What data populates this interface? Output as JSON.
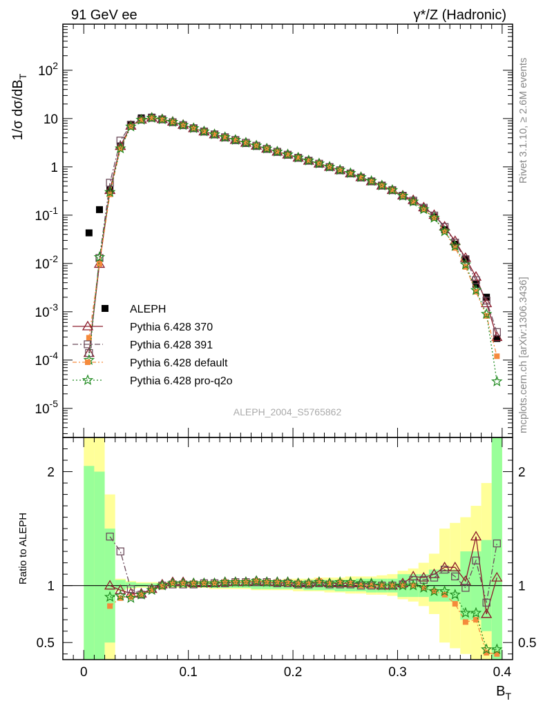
{
  "header": {
    "left": "91 GeV ee",
    "right": "γ*/Z (Hadronic)"
  },
  "side_text": {
    "rivet": "Rivet 3.1.10, ≥ 2.6M events",
    "mcplots": "mcplots.cern.ch [arXiv:1306.3436]"
  },
  "analysis_label": "ALEPH_2004_S5765862",
  "colors": {
    "aleph": "#000000",
    "p370": "#8b1a2a",
    "p391": "#6b4a5a",
    "pdefault": "#f58a3c",
    "pq2o": "#1f8a1f",
    "band_yellow": "#ffff99",
    "band_green": "#99ff99"
  },
  "chart_data": [
    {
      "type": "scatter",
      "panel": "main",
      "ylabel": "1/σ  dσ/dB_T",
      "xlabel": "",
      "yscale": "log",
      "xlim": [
        -0.02,
        0.41
      ],
      "ylim": [
        2.5e-06,
        900
      ],
      "ytick_labels": [
        "10^-5",
        "10^-4",
        "10^-3",
        "10^-2",
        "10^-1",
        "1",
        "10",
        "10^2"
      ],
      "legend_position": "lower-left",
      "legend": [
        {
          "key": "aleph",
          "label": "ALEPH"
        },
        {
          "key": "p370",
          "label": "Pythia 6.428 370"
        },
        {
          "key": "p391",
          "label": "Pythia 6.428 391"
        },
        {
          "key": "pdefault",
          "label": "Pythia 6.428 default"
        },
        {
          "key": "pq2o",
          "label": "Pythia 6.428 pro-q2o"
        }
      ],
      "x": [
        0.005,
        0.015,
        0.025,
        0.035,
        0.045,
        0.055,
        0.065,
        0.075,
        0.085,
        0.095,
        0.105,
        0.115,
        0.125,
        0.135,
        0.145,
        0.155,
        0.165,
        0.175,
        0.185,
        0.195,
        0.205,
        0.215,
        0.225,
        0.235,
        0.245,
        0.255,
        0.265,
        0.275,
        0.285,
        0.295,
        0.305,
        0.315,
        0.325,
        0.335,
        0.345,
        0.355,
        0.365,
        0.375,
        0.385,
        0.395
      ],
      "series": [
        {
          "key": "aleph",
          "name": "ALEPH",
          "values": [
            0.043,
            0.13,
            0.33,
            2.7,
            7.6,
            10.3,
            10.7,
            9.6,
            8.3,
            7.2,
            6.2,
            5.3,
            4.6,
            4.0,
            3.5,
            3.05,
            2.65,
            2.3,
            2.0,
            1.75,
            1.52,
            1.32,
            1.14,
            0.98,
            0.84,
            0.72,
            0.6,
            0.5,
            0.41,
            0.33,
            0.25,
            0.19,
            0.135,
            0.092,
            0.05,
            0.025,
            0.0125,
            0.0037,
            0.002,
            0.00028
          ]
        },
        {
          "key": "p370",
          "name": "Pythia 6.428 370",
          "values": [
            0.00014,
            0.0098,
            0.33,
            2.7,
            7.1,
            9.5,
            10.4,
            9.7,
            8.6,
            7.4,
            6.3,
            5.4,
            4.7,
            4.1,
            3.6,
            3.15,
            2.75,
            2.38,
            2.06,
            1.8,
            1.55,
            1.34,
            1.17,
            1.0,
            0.85,
            0.73,
            0.61,
            0.5,
            0.41,
            0.33,
            0.255,
            0.205,
            0.145,
            0.101,
            0.058,
            0.029,
            0.013,
            0.0053,
            0.0015,
            0.0003
          ]
        },
        {
          "key": "p391",
          "name": "Pythia 6.428 391",
          "values": [
            0.00014,
            0.013,
            0.47,
            3.5,
            7.4,
            9.5,
            10.4,
            9.6,
            8.4,
            7.3,
            6.3,
            5.4,
            4.7,
            4.1,
            3.6,
            3.15,
            2.73,
            2.36,
            2.05,
            1.78,
            1.54,
            1.34,
            1.16,
            0.99,
            0.85,
            0.73,
            0.6,
            0.5,
            0.41,
            0.33,
            0.252,
            0.2,
            0.142,
            0.098,
            0.057,
            0.027,
            0.0122,
            0.0045,
            0.0017,
            0.00038
          ]
        },
        {
          "key": "pdefault",
          "name": "Pythia 6.428 default",
          "values": [
            0.00029,
            0.0098,
            0.27,
            2.4,
            6.8,
            9.3,
            10.3,
            9.5,
            8.5,
            7.3,
            6.3,
            5.4,
            4.7,
            4.1,
            3.6,
            3.15,
            2.75,
            2.38,
            2.06,
            1.78,
            1.54,
            1.34,
            1.18,
            1.0,
            0.86,
            0.73,
            0.6,
            0.5,
            0.41,
            0.33,
            0.25,
            0.19,
            0.132,
            0.087,
            0.046,
            0.021,
            0.0085,
            0.0026,
            0.00082,
            0.00012
          ]
        },
        {
          "key": "pq2o",
          "name": "Pythia 6.428 pro-q2o",
          "values": [
            0.0001,
            0.0135,
            0.3,
            2.4,
            6.8,
            9.4,
            10.3,
            9.6,
            8.5,
            7.3,
            6.3,
            5.4,
            4.7,
            4.1,
            3.6,
            3.15,
            2.75,
            2.38,
            2.06,
            1.8,
            1.55,
            1.35,
            1.17,
            1.0,
            0.86,
            0.74,
            0.61,
            0.51,
            0.41,
            0.33,
            0.25,
            0.19,
            0.132,
            0.088,
            0.046,
            0.023,
            0.0095,
            0.0028,
            0.0009,
            3.6e-05
          ]
        }
      ]
    },
    {
      "type": "scatter",
      "panel": "ratio",
      "ylabel": "Ratio to ALEPH",
      "xlabel": "B_T",
      "ylim": [
        0.35,
        2.3
      ],
      "yticks": [
        0.5,
        1,
        2
      ],
      "xticks": [
        0,
        0.1,
        0.2,
        0.3,
        0.4
      ],
      "x": [
        0.005,
        0.015,
        0.025,
        0.035,
        0.045,
        0.055,
        0.065,
        0.075,
        0.085,
        0.095,
        0.105,
        0.115,
        0.125,
        0.135,
        0.145,
        0.155,
        0.165,
        0.175,
        0.185,
        0.195,
        0.205,
        0.215,
        0.225,
        0.235,
        0.245,
        0.255,
        0.265,
        0.275,
        0.285,
        0.295,
        0.305,
        0.315,
        0.325,
        0.335,
        0.345,
        0.355,
        0.365,
        0.375,
        0.385,
        0.395
      ],
      "bands": {
        "yellow_low": [
          0.35,
          0.35,
          0.35,
          0.95,
          0.97,
          0.98,
          0.98,
          0.98,
          0.98,
          0.98,
          0.98,
          0.98,
          0.97,
          0.97,
          0.97,
          0.97,
          0.96,
          0.96,
          0.96,
          0.96,
          0.95,
          0.95,
          0.95,
          0.94,
          0.94,
          0.93,
          0.93,
          0.92,
          0.92,
          0.91,
          0.88,
          0.86,
          0.82,
          0.75,
          0.5,
          0.45,
          0.4,
          0.35,
          0.35,
          0.35
        ],
        "yellow_high": [
          2.3,
          2.3,
          1.8,
          1.06,
          1.04,
          1.03,
          1.03,
          1.03,
          1.03,
          1.03,
          1.03,
          1.04,
          1.04,
          1.04,
          1.04,
          1.05,
          1.05,
          1.05,
          1.05,
          1.06,
          1.06,
          1.06,
          1.07,
          1.07,
          1.07,
          1.08,
          1.08,
          1.08,
          1.09,
          1.1,
          1.13,
          1.15,
          1.2,
          1.28,
          1.5,
          1.55,
          1.6,
          1.7,
          1.9,
          2.3
        ],
        "green_low": [
          0.35,
          0.35,
          0.5,
          0.96,
          0.98,
          0.99,
          0.99,
          0.99,
          0.99,
          0.99,
          0.99,
          0.99,
          0.98,
          0.98,
          0.98,
          0.98,
          0.97,
          0.97,
          0.97,
          0.97,
          0.97,
          0.96,
          0.96,
          0.96,
          0.95,
          0.95,
          0.95,
          0.94,
          0.94,
          0.94,
          0.9,
          0.9,
          0.9,
          0.86,
          0.86,
          0.86,
          0.7,
          0.7,
          0.6,
          0.35
        ],
        "green_high": [
          2.05,
          2.0,
          1.5,
          1.05,
          1.03,
          1.02,
          1.02,
          1.02,
          1.02,
          1.02,
          1.02,
          1.03,
          1.03,
          1.03,
          1.03,
          1.03,
          1.04,
          1.04,
          1.04,
          1.04,
          1.04,
          1.05,
          1.05,
          1.05,
          1.05,
          1.05,
          1.06,
          1.06,
          1.06,
          1.06,
          1.1,
          1.1,
          1.1,
          1.14,
          1.14,
          1.14,
          1.3,
          1.3,
          1.4,
          2.3
        ]
      },
      "series": [
        {
          "key": "p370",
          "name": "Pythia 6.428 370",
          "values": [
            null,
            null,
            1.0,
            0.96,
            0.93,
            0.93,
            0.97,
            1.01,
            1.03,
            1.03,
            1.02,
            1.02,
            1.02,
            1.03,
            1.03,
            1.03,
            1.04,
            1.03,
            1.03,
            1.03,
            1.02,
            1.02,
            1.03,
            1.02,
            1.02,
            1.02,
            1.02,
            1.01,
            1.0,
            1.0,
            1.02,
            1.08,
            1.07,
            1.1,
            1.16,
            1.16,
            1.04,
            1.43,
            0.75,
            1.07
          ]
        },
        {
          "key": "p391",
          "name": "Pythia 6.428 391",
          "values": [
            null,
            null,
            1.43,
            1.3,
            0.97,
            0.92,
            0.97,
            1.0,
            1.01,
            1.01,
            1.01,
            1.02,
            1.02,
            1.02,
            1.03,
            1.03,
            1.03,
            1.03,
            1.02,
            1.02,
            1.01,
            1.01,
            1.02,
            1.01,
            1.01,
            1.01,
            1.0,
            1.0,
            1.0,
            1.0,
            1.01,
            1.05,
            1.05,
            1.07,
            1.14,
            1.08,
            0.98,
            1.22,
            0.85,
            1.37
          ]
        },
        {
          "key": "pdefault",
          "name": "Pythia 6.428 default",
          "values": [
            null,
            null,
            0.82,
            0.89,
            0.9,
            0.92,
            0.96,
            0.99,
            1.02,
            1.02,
            1.02,
            1.02,
            1.02,
            1.03,
            1.03,
            1.03,
            1.04,
            1.03,
            1.03,
            1.02,
            1.02,
            1.02,
            1.04,
            1.02,
            1.03,
            1.02,
            1.0,
            1.0,
            1.0,
            1.0,
            1.0,
            1.0,
            0.98,
            0.95,
            0.92,
            0.84,
            0.68,
            0.7,
            0.41,
            0.4
          ]
        },
        {
          "key": "pq2o",
          "name": "Pythia 6.428 pro-q2o",
          "values": [
            null,
            null,
            0.9,
            0.91,
            0.89,
            0.92,
            0.96,
            1.0,
            1.02,
            1.02,
            1.02,
            1.02,
            1.02,
            1.03,
            1.03,
            1.03,
            1.04,
            1.03,
            1.03,
            1.03,
            1.02,
            1.02,
            1.03,
            1.02,
            1.03,
            1.03,
            1.02,
            1.02,
            1.0,
            1.0,
            1.0,
            1.0,
            0.98,
            0.95,
            0.95,
            0.92,
            0.76,
            0.76,
            0.44,
            0.44
          ]
        }
      ]
    }
  ]
}
